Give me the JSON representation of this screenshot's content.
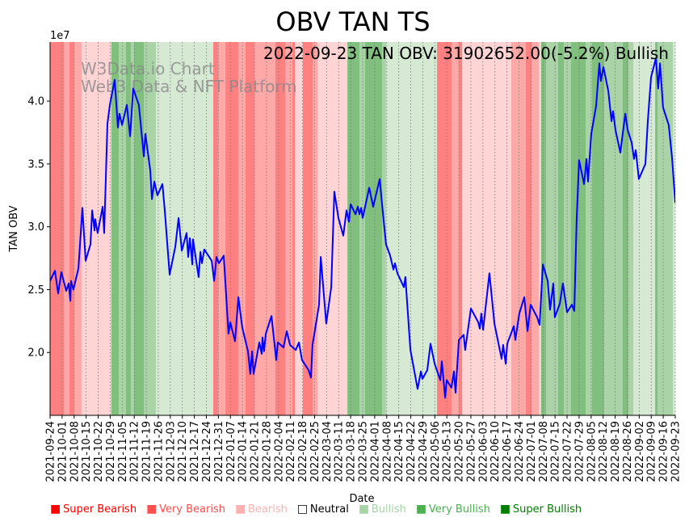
{
  "chart_data": {
    "type": "line",
    "title": "OBV TAN TS",
    "annotation": "2022-09-23 TAN OBV: 31902652.00(-5.2%) Bullish",
    "watermark": [
      "W3Data.io Chart",
      "Web3 Data & NFT Platform"
    ],
    "xlabel": "Date",
    "ylabel": "TAN OBV",
    "y_offset_label": "1e7",
    "y_unit_multiplier": 10000000,
    "ylim": [
      1.5,
      4.47
    ],
    "xlim_days": [
      0,
      364
    ],
    "x_start_date": "2021-09-24",
    "y_ticks": [
      2.0,
      2.5,
      3.0,
      3.5,
      4.0
    ],
    "y_tick_labels": [
      "2.0",
      "2.5",
      "3.0",
      "3.5",
      "4.0"
    ],
    "x_tick_labels": [
      "2021-09-24",
      "2021-10-01",
      "2021-10-08",
      "2021-10-15",
      "2021-10-22",
      "2021-10-29",
      "2021-11-05",
      "2021-11-12",
      "2021-11-19",
      "2021-11-26",
      "2021-12-03",
      "2021-12-10",
      "2021-12-17",
      "2021-12-24",
      "2021-12-31",
      "2022-01-07",
      "2022-01-14",
      "2022-01-21",
      "2022-01-28",
      "2022-02-04",
      "2022-02-11",
      "2022-02-18",
      "2022-02-25",
      "2022-03-04",
      "2022-03-11",
      "2022-03-18",
      "2022-03-25",
      "2022-04-01",
      "2022-04-08",
      "2022-04-15",
      "2022-04-22",
      "2022-04-29",
      "2022-05-06",
      "2022-05-13",
      "2022-05-20",
      "2022-05-27",
      "2022-06-03",
      "2022-06-10",
      "2022-06-17",
      "2022-06-24",
      "2022-07-01",
      "2022-07-08",
      "2022-07-15",
      "2022-07-22",
      "2022-07-29",
      "2022-08-05",
      "2022-08-12",
      "2022-08-19",
      "2022-08-26",
      "2022-09-02",
      "2022-09-09",
      "2022-09-16",
      "2022-09-23"
    ],
    "series": [
      {
        "name": "TAN OBV",
        "color": "#0000ff",
        "points_day_value": [
          [
            0,
            2.57
          ],
          [
            2.8,
            2.65
          ],
          [
            4.7,
            2.47
          ],
          [
            6.6,
            2.64
          ],
          [
            9.4,
            2.49
          ],
          [
            10.8,
            2.55
          ],
          [
            11.8,
            2.41
          ],
          [
            12.2,
            2.57
          ],
          [
            13.6,
            2.5
          ],
          [
            16.5,
            2.67
          ],
          [
            18.8,
            3.15
          ],
          [
            20.7,
            2.73
          ],
          [
            23.5,
            2.86
          ],
          [
            24.5,
            3.13
          ],
          [
            25.9,
            2.97
          ],
          [
            26.3,
            3.06
          ],
          [
            27.7,
            2.95
          ],
          [
            30.6,
            3.16
          ],
          [
            31.5,
            2.95
          ],
          [
            33.4,
            3.82
          ],
          [
            34.8,
            3.97
          ],
          [
            37.6,
            4.17
          ],
          [
            39.5,
            3.79
          ],
          [
            40.4,
            3.9
          ],
          [
            41.9,
            3.81
          ],
          [
            44.7,
            3.97
          ],
          [
            46.6,
            3.72
          ],
          [
            48.4,
            4.1
          ],
          [
            51.7,
            3.97
          ],
          [
            54.6,
            3.56
          ],
          [
            55.5,
            3.74
          ],
          [
            58.3,
            3.45
          ],
          [
            59.3,
            3.22
          ],
          [
            60.7,
            3.36
          ],
          [
            62.5,
            3.25
          ],
          [
            65.4,
            3.34
          ],
          [
            66.8,
            3.13
          ],
          [
            69.6,
            2.62
          ],
          [
            72.9,
            2.84
          ],
          [
            74.8,
            3.07
          ],
          [
            76.7,
            2.81
          ],
          [
            79.5,
            2.95
          ],
          [
            80.4,
            2.76
          ],
          [
            81.4,
            2.91
          ],
          [
            82.8,
            2.7
          ],
          [
            83.2,
            2.9
          ],
          [
            86.5,
            2.6
          ],
          [
            87.5,
            2.8
          ],
          [
            88.4,
            2.71
          ],
          [
            89.8,
            2.82
          ],
          [
            94.1,
            2.73
          ],
          [
            95.5,
            2.57
          ],
          [
            96.9,
            2.76
          ],
          [
            98.3,
            2.71
          ],
          [
            101.1,
            2.77
          ],
          [
            103.9,
            2.15
          ],
          [
            104.9,
            2.24
          ],
          [
            107.7,
            2.09
          ],
          [
            109.6,
            2.44
          ],
          [
            111.9,
            2.2
          ],
          [
            115.2,
            2.01
          ],
          [
            116.6,
            1.83
          ],
          [
            117.6,
            2.01
          ],
          [
            118.5,
            1.83
          ],
          [
            121.8,
            2.08
          ],
          [
            123.2,
            1.99
          ],
          [
            123.7,
            2.12
          ],
          [
            124.6,
            2.01
          ],
          [
            125.6,
            2.15
          ],
          [
            128.9,
            2.29
          ],
          [
            131.7,
            1.94
          ],
          [
            132.6,
            2.08
          ],
          [
            135.9,
            2.04
          ],
          [
            137.8,
            2.17
          ],
          [
            139.7,
            2.06
          ],
          [
            143.0,
            2.02
          ],
          [
            144.9,
            2.08
          ],
          [
            146.7,
            1.94
          ],
          [
            150.5,
            1.86
          ],
          [
            151.9,
            1.8
          ],
          [
            152.8,
            2.06
          ],
          [
            156.6,
            2.38
          ],
          [
            157.6,
            2.76
          ],
          [
            160.8,
            2.23
          ],
          [
            163.7,
            2.52
          ],
          [
            165.5,
            3.28
          ],
          [
            167.9,
            3.07
          ],
          [
            170.7,
            2.93
          ],
          [
            172.6,
            3.13
          ],
          [
            174.0,
            3.04
          ],
          [
            175.0,
            3.18
          ],
          [
            177.8,
            3.1
          ],
          [
            179.2,
            3.16
          ],
          [
            180.1,
            3.1
          ],
          [
            181.1,
            3.15
          ],
          [
            182.0,
            3.07
          ],
          [
            185.8,
            3.31
          ],
          [
            188.1,
            3.16
          ],
          [
            191.9,
            3.38
          ],
          [
            193.3,
            3.18
          ],
          [
            195.6,
            2.86
          ],
          [
            198.0,
            2.77
          ],
          [
            199.9,
            2.66
          ],
          [
            200.8,
            2.71
          ],
          [
            202.2,
            2.63
          ],
          [
            206.0,
            2.52
          ],
          [
            206.9,
            2.6
          ],
          [
            209.8,
            2.02
          ],
          [
            214.0,
            1.71
          ],
          [
            215.9,
            1.85
          ],
          [
            216.8,
            1.79
          ],
          [
            219.6,
            1.86
          ],
          [
            221.5,
            2.07
          ],
          [
            223.9,
            1.91
          ],
          [
            227.2,
            1.78
          ],
          [
            228.1,
            1.93
          ],
          [
            230.0,
            1.64
          ],
          [
            230.9,
            1.78
          ],
          [
            233.7,
            1.72
          ],
          [
            235.1,
            1.85
          ],
          [
            236.1,
            1.68
          ],
          [
            238.0,
            2.1
          ],
          [
            240.8,
            2.14
          ],
          [
            241.7,
            2.02
          ],
          [
            245.0,
            2.35
          ],
          [
            249.3,
            2.24
          ],
          [
            250.2,
            2.19
          ],
          [
            251.1,
            2.31
          ],
          [
            252.1,
            2.18
          ],
          [
            255.8,
            2.63
          ],
          [
            258.7,
            2.23
          ],
          [
            262.9,
            1.95
          ],
          [
            263.8,
            2.06
          ],
          [
            265.3,
            1.91
          ],
          [
            266.2,
            2.07
          ],
          [
            270.0,
            2.21
          ],
          [
            270.9,
            2.1
          ],
          [
            273.2,
            2.31
          ],
          [
            276.1,
            2.44
          ],
          [
            278.0,
            2.17
          ],
          [
            279.8,
            2.38
          ],
          [
            283.6,
            2.28
          ],
          [
            285.0,
            2.22
          ],
          [
            286.9,
            2.7
          ],
          [
            289.7,
            2.57
          ],
          [
            291.1,
            2.34
          ],
          [
            293.0,
            2.55
          ],
          [
            293.9,
            2.28
          ],
          [
            296.8,
            2.39
          ],
          [
            298.6,
            2.55
          ],
          [
            301.0,
            2.32
          ],
          [
            303.8,
            2.38
          ],
          [
            305.2,
            2.33
          ],
          [
            306.6,
            3.05
          ],
          [
            308.0,
            3.53
          ],
          [
            310.9,
            3.34
          ],
          [
            312.3,
            3.54
          ],
          [
            313.2,
            3.36
          ],
          [
            315.1,
            3.74
          ],
          [
            317.9,
            3.96
          ],
          [
            319.8,
            4.3
          ],
          [
            320.7,
            4.16
          ],
          [
            322.2,
            4.27
          ],
          [
            325.0,
            4.08
          ],
          [
            326.9,
            3.84
          ],
          [
            327.8,
            3.92
          ],
          [
            329.2,
            3.77
          ],
          [
            332.0,
            3.59
          ],
          [
            334.9,
            3.9
          ],
          [
            336.3,
            3.77
          ],
          [
            338.6,
            3.67
          ],
          [
            340.0,
            3.54
          ],
          [
            341.0,
            3.61
          ],
          [
            342.8,
            3.38
          ],
          [
            346.6,
            3.5
          ],
          [
            348.0,
            3.84
          ],
          [
            349.9,
            4.19
          ],
          [
            352.7,
            4.34
          ],
          [
            354.1,
            4.1
          ],
          [
            355.1,
            4.3
          ],
          [
            356.9,
            3.95
          ],
          [
            360.2,
            3.81
          ],
          [
            362.1,
            3.55
          ],
          [
            364.0,
            3.19
          ]
        ]
      }
    ],
    "sentiment_colors": {
      "SB": "#ff8080",
      "VB": "#ffa8a8",
      "B": "#ffd4d4",
      "Bu": "#d5e9d3",
      "VBu": "#aad4a8",
      "SBu": "#80bf7e"
    },
    "sentiment_bands_days": [
      [
        0,
        8,
        "SB"
      ],
      [
        8,
        11.3,
        "VB"
      ],
      [
        11.3,
        14.1,
        "SB"
      ],
      [
        14.1,
        18.3,
        "VB"
      ],
      [
        18.3,
        35.7,
        "B"
      ],
      [
        35.7,
        40,
        "SBu"
      ],
      [
        40,
        44.2,
        "VBu"
      ],
      [
        44.2,
        47,
        "SBu"
      ],
      [
        47,
        48.9,
        "VBu"
      ],
      [
        48.9,
        54.6,
        "SBu"
      ],
      [
        54.6,
        61.6,
        "VBu"
      ],
      [
        61.6,
        95,
        "Bu"
      ],
      [
        95,
        97.8,
        "SB"
      ],
      [
        97.8,
        102.1,
        "VB"
      ],
      [
        102.1,
        109.6,
        "SB"
      ],
      [
        109.6,
        113.8,
        "VB"
      ],
      [
        113.8,
        119,
        "SB"
      ],
      [
        119,
        131.2,
        "VB"
      ],
      [
        131.2,
        136.9,
        "SB"
      ],
      [
        136.9,
        141.1,
        "VB"
      ],
      [
        141.1,
        142.5,
        "SB"
      ],
      [
        142.5,
        147.2,
        "B"
      ],
      [
        147.2,
        152.8,
        "SB"
      ],
      [
        152.8,
        155.7,
        "VB"
      ],
      [
        155.7,
        173.1,
        "B"
      ],
      [
        173.1,
        180.1,
        "SBu"
      ],
      [
        180.1,
        183.4,
        "VBu"
      ],
      [
        183.4,
        193.3,
        "SBu"
      ],
      [
        193.3,
        195.6,
        "VBu"
      ],
      [
        195.6,
        225.3,
        "Bu"
      ],
      [
        225.3,
        233.7,
        "SB"
      ],
      [
        233.7,
        238,
        "VB"
      ],
      [
        238,
        239.9,
        "SB"
      ],
      [
        239.9,
        268.5,
        "B"
      ],
      [
        268.5,
        277,
        "VB"
      ],
      [
        277,
        280.3,
        "SB"
      ],
      [
        280.3,
        284.5,
        "VB"
      ],
      [
        284.5,
        285.9,
        "B"
      ],
      [
        285.9,
        288.8,
        "SBu"
      ],
      [
        288.8,
        295.8,
        "VBu"
      ],
      [
        295.8,
        299.1,
        "SBu"
      ],
      [
        299.1,
        303.3,
        "VBu"
      ],
      [
        303.3,
        311.8,
        "SBu"
      ],
      [
        311.8,
        315.5,
        "VBu"
      ],
      [
        315.5,
        322.6,
        "SBu"
      ],
      [
        322.6,
        333.4,
        "VBu"
      ],
      [
        333.4,
        336.7,
        "SBu"
      ],
      [
        336.7,
        339.6,
        "VBu"
      ],
      [
        339.6,
        352.3,
        "Bu"
      ],
      [
        352.3,
        353.7,
        "SBu"
      ],
      [
        353.7,
        362.6,
        "VBu"
      ],
      [
        362.6,
        364,
        "Bu"
      ]
    ],
    "legend": [
      {
        "label": "Super Bearish",
        "marker": "■",
        "color": "#ff0000"
      },
      {
        "label": "Very Bearish",
        "marker": "■",
        "color": "#ff5050"
      },
      {
        "label": "Bearish",
        "marker": "■",
        "color": "#ffb0b0"
      },
      {
        "label": "Neutral",
        "marker": "□",
        "color": "#000000"
      },
      {
        "label": "Bullish",
        "marker": "■",
        "color": "#a8d5a8"
      },
      {
        "label": "Very Bullish",
        "marker": "■",
        "color": "#4caf50"
      },
      {
        "label": "Super Bullish",
        "marker": "■",
        "color": "#008000"
      }
    ],
    "legend_placement": "bottom"
  }
}
